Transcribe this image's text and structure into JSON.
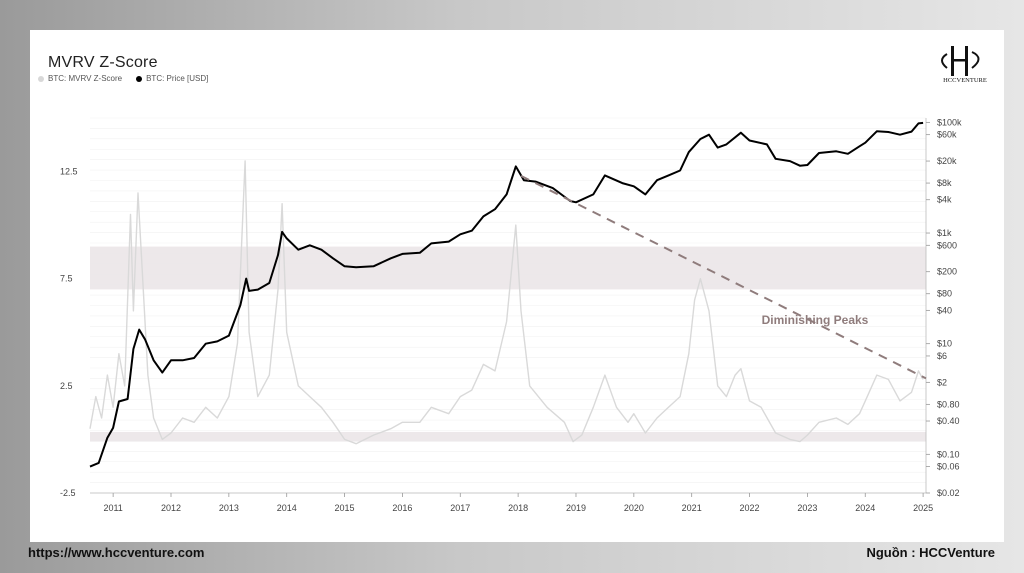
{
  "page": {
    "website": "https://www.hccventure.com",
    "source": "Nguồn : HCCVenture",
    "logo_text": "HCCVENTURE"
  },
  "chart_data": {
    "type": "line",
    "title": "MVRV Z-Score",
    "legend": [
      {
        "name": "BTC: MVRV Z-Score",
        "color": "#dcdcdc"
      },
      {
        "name": "BTC: Price [USD]",
        "color": "#000000"
      }
    ],
    "x_ticks": [
      "2011",
      "2012",
      "2013",
      "2014",
      "2015",
      "2016",
      "2017",
      "2018",
      "2019",
      "2020",
      "2021",
      "2022",
      "2023",
      "2024",
      "2025"
    ],
    "xlim": [
      2010.6,
      2025.05
    ],
    "left_axis": {
      "ticks": [
        -2.5,
        2.5,
        7.5,
        12.5
      ],
      "labels": [
        "-2.5",
        "2.5",
        "7.5",
        "12.5"
      ],
      "ylim": [
        -2.5,
        15
      ]
    },
    "right_axis": {
      "scale": "log",
      "labels": [
        "$100k",
        "$60k",
        "$20k",
        "$8k",
        "$4k",
        "$1k",
        "$600",
        "$200",
        "$80",
        "$40",
        "$10",
        "$6",
        "$2",
        "$0.80",
        "$0.40",
        "$0.10",
        "$0.06",
        "$0.02"
      ],
      "values": [
        100000,
        60000,
        20000,
        8000,
        4000,
        1000,
        600,
        200,
        80,
        40,
        10,
        6,
        2,
        0.8,
        0.4,
        0.1,
        0.06,
        0.02
      ],
      "ylim": [
        0.02,
        120000
      ]
    },
    "bands": [
      {
        "from": 7.0,
        "to": 9.0
      },
      {
        "from": -0.1,
        "to": 0.35
      }
    ],
    "annotation": {
      "text": "Diminishing Peaks",
      "line": [
        [
          2018.05,
          12.3
        ],
        [
          2025.05,
          2.85
        ]
      ]
    },
    "series": [
      {
        "name": "BTC: Price [USD]",
        "values": [
          [
            2010.6,
            0.06
          ],
          [
            2010.75,
            0.07
          ],
          [
            2010.9,
            0.2
          ],
          [
            2011.0,
            0.3
          ],
          [
            2011.1,
            0.9
          ],
          [
            2011.25,
            1.0
          ],
          [
            2011.35,
            8
          ],
          [
            2011.45,
            18
          ],
          [
            2011.55,
            12
          ],
          [
            2011.7,
            5
          ],
          [
            2011.85,
            3
          ],
          [
            2012.0,
            5
          ],
          [
            2012.2,
            5
          ],
          [
            2012.4,
            5.5
          ],
          [
            2012.6,
            10
          ],
          [
            2012.8,
            11
          ],
          [
            2013.0,
            14
          ],
          [
            2013.2,
            50
          ],
          [
            2013.3,
            150
          ],
          [
            2013.35,
            90
          ],
          [
            2013.5,
            95
          ],
          [
            2013.7,
            125
          ],
          [
            2013.85,
            400
          ],
          [
            2013.92,
            1050
          ],
          [
            2014.0,
            800
          ],
          [
            2014.2,
            500
          ],
          [
            2014.4,
            600
          ],
          [
            2014.6,
            500
          ],
          [
            2014.8,
            350
          ],
          [
            2015.0,
            250
          ],
          [
            2015.2,
            240
          ],
          [
            2015.5,
            250
          ],
          [
            2015.8,
            350
          ],
          [
            2016.0,
            420
          ],
          [
            2016.3,
            440
          ],
          [
            2016.5,
            650
          ],
          [
            2016.8,
            700
          ],
          [
            2017.0,
            950
          ],
          [
            2017.2,
            1100
          ],
          [
            2017.4,
            2000
          ],
          [
            2017.6,
            2700
          ],
          [
            2017.8,
            5000
          ],
          [
            2017.96,
            16000
          ],
          [
            2018.1,
            9000
          ],
          [
            2018.3,
            8500
          ],
          [
            2018.6,
            6500
          ],
          [
            2018.9,
            3800
          ],
          [
            2019.0,
            3600
          ],
          [
            2019.3,
            5000
          ],
          [
            2019.5,
            11000
          ],
          [
            2019.8,
            8000
          ],
          [
            2020.0,
            7000
          ],
          [
            2020.2,
            5000
          ],
          [
            2020.4,
            9000
          ],
          [
            2020.6,
            11000
          ],
          [
            2020.8,
            13500
          ],
          [
            2020.95,
            29000
          ],
          [
            2021.15,
            50000
          ],
          [
            2021.3,
            60000
          ],
          [
            2021.45,
            35000
          ],
          [
            2021.6,
            40000
          ],
          [
            2021.85,
            65000
          ],
          [
            2022.0,
            47000
          ],
          [
            2022.3,
            40000
          ],
          [
            2022.45,
            22000
          ],
          [
            2022.7,
            20000
          ],
          [
            2022.87,
            16500
          ],
          [
            2023.0,
            17000
          ],
          [
            2023.2,
            28000
          ],
          [
            2023.5,
            30000
          ],
          [
            2023.7,
            27000
          ],
          [
            2023.9,
            37000
          ],
          [
            2024.0,
            43000
          ],
          [
            2024.2,
            69000
          ],
          [
            2024.4,
            67000
          ],
          [
            2024.6,
            60000
          ],
          [
            2024.8,
            68000
          ],
          [
            2024.92,
            96000
          ],
          [
            2025.0,
            98000
          ]
        ]
      },
      {
        "name": "BTC: MVRV Z-Score",
        "values": [
          [
            2010.6,
            0.5
          ],
          [
            2010.7,
            2.0
          ],
          [
            2010.8,
            1.0
          ],
          [
            2010.9,
            3.0
          ],
          [
            2011.0,
            1.5
          ],
          [
            2011.1,
            4.0
          ],
          [
            2011.2,
            2.5
          ],
          [
            2011.3,
            10.5
          ],
          [
            2011.35,
            6.0
          ],
          [
            2011.43,
            11.5
          ],
          [
            2011.5,
            8.0
          ],
          [
            2011.6,
            3.0
          ],
          [
            2011.7,
            1.0
          ],
          [
            2011.85,
            0.0
          ],
          [
            2012.0,
            0.3
          ],
          [
            2012.2,
            1.0
          ],
          [
            2012.4,
            0.8
          ],
          [
            2012.6,
            1.5
          ],
          [
            2012.8,
            1.0
          ],
          [
            2013.0,
            2.0
          ],
          [
            2013.15,
            4.5
          ],
          [
            2013.25,
            11.0
          ],
          [
            2013.28,
            13.0
          ],
          [
            2013.35,
            5.0
          ],
          [
            2013.5,
            2.0
          ],
          [
            2013.7,
            3.0
          ],
          [
            2013.85,
            7.0
          ],
          [
            2013.92,
            11.0
          ],
          [
            2014.0,
            5.0
          ],
          [
            2014.2,
            2.5
          ],
          [
            2014.4,
            2.0
          ],
          [
            2014.6,
            1.5
          ],
          [
            2014.8,
            0.8
          ],
          [
            2015.0,
            0.0
          ],
          [
            2015.2,
            -0.2
          ],
          [
            2015.5,
            0.2
          ],
          [
            2015.8,
            0.5
          ],
          [
            2016.0,
            0.8
          ],
          [
            2016.3,
            0.8
          ],
          [
            2016.5,
            1.5
          ],
          [
            2016.8,
            1.2
          ],
          [
            2017.0,
            2.0
          ],
          [
            2017.2,
            2.3
          ],
          [
            2017.4,
            3.5
          ],
          [
            2017.6,
            3.2
          ],
          [
            2017.8,
            5.5
          ],
          [
            2017.96,
            10.0
          ],
          [
            2018.05,
            6.0
          ],
          [
            2018.2,
            2.5
          ],
          [
            2018.5,
            1.5
          ],
          [
            2018.8,
            0.8
          ],
          [
            2018.95,
            -0.1
          ],
          [
            2019.1,
            0.2
          ],
          [
            2019.3,
            1.5
          ],
          [
            2019.5,
            3.0
          ],
          [
            2019.7,
            1.5
          ],
          [
            2019.9,
            0.8
          ],
          [
            2020.0,
            1.2
          ],
          [
            2020.2,
            0.3
          ],
          [
            2020.4,
            1.0
          ],
          [
            2020.6,
            1.5
          ],
          [
            2020.8,
            2.0
          ],
          [
            2020.95,
            4.0
          ],
          [
            2021.05,
            6.5
          ],
          [
            2021.15,
            7.5
          ],
          [
            2021.3,
            6.0
          ],
          [
            2021.45,
            2.5
          ],
          [
            2021.6,
            2.0
          ],
          [
            2021.75,
            3.0
          ],
          [
            2021.85,
            3.3
          ],
          [
            2022.0,
            1.8
          ],
          [
            2022.2,
            1.5
          ],
          [
            2022.45,
            0.3
          ],
          [
            2022.7,
            0.0
          ],
          [
            2022.87,
            -0.1
          ],
          [
            2023.0,
            0.2
          ],
          [
            2023.2,
            0.8
          ],
          [
            2023.5,
            1.0
          ],
          [
            2023.7,
            0.7
          ],
          [
            2023.9,
            1.2
          ],
          [
            2024.0,
            1.8
          ],
          [
            2024.2,
            3.0
          ],
          [
            2024.4,
            2.8
          ],
          [
            2024.6,
            1.8
          ],
          [
            2024.8,
            2.2
          ],
          [
            2024.92,
            3.2
          ],
          [
            2025.0,
            2.8
          ]
        ]
      }
    ]
  }
}
